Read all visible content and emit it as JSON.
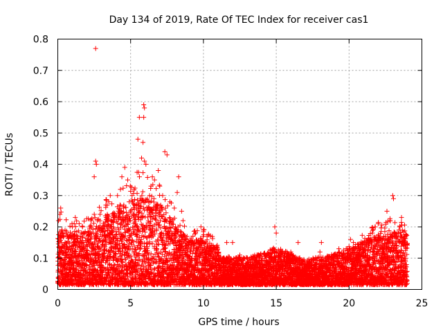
{
  "chart_data": {
    "type": "scatter",
    "title": "Day 134 of 2019, Rate Of TEC Index for receiver cas1",
    "xlabel": "GPS time / hours",
    "ylabel": "ROTI / TECUs",
    "xlim": [
      0,
      25
    ],
    "ylim": [
      0,
      0.8
    ],
    "x_ticks": [
      0,
      5,
      10,
      15,
      20,
      25
    ],
    "y_ticks": [
      0,
      0.1,
      0.2,
      0.3,
      0.4,
      0.5,
      0.6,
      0.7,
      0.8
    ],
    "x_tick_labels": [
      "0",
      "5",
      "10",
      "15",
      "20",
      "25"
    ],
    "y_tick_labels": [
      "0",
      "0.1",
      "0.2",
      "0.3",
      "0.4",
      "0.5",
      "0.6",
      "0.7",
      "0.8"
    ],
    "grid": true,
    "marker": "+",
    "color": "#ff0000",
    "series": [
      {
        "name": "ROTI",
        "points": [
          [
            2.6,
            0.77
          ],
          [
            5.9,
            0.59
          ],
          [
            5.95,
            0.58
          ],
          [
            5.6,
            0.55
          ],
          [
            5.9,
            0.55
          ],
          [
            5.5,
            0.48
          ],
          [
            5.85,
            0.47
          ],
          [
            5.75,
            0.42
          ],
          [
            5.95,
            0.41
          ],
          [
            6.05,
            0.4
          ],
          [
            7.35,
            0.44
          ],
          [
            7.5,
            0.43
          ],
          [
            6.9,
            0.38
          ],
          [
            2.6,
            0.41
          ],
          [
            2.65,
            0.4
          ],
          [
            2.5,
            0.36
          ],
          [
            4.6,
            0.39
          ],
          [
            4.4,
            0.36
          ],
          [
            4.8,
            0.35
          ],
          [
            8.3,
            0.36
          ],
          [
            8.2,
            0.31
          ],
          [
            7.0,
            0.33
          ],
          [
            6.4,
            0.33
          ],
          [
            6.3,
            0.3
          ],
          [
            3.5,
            0.28
          ],
          [
            3.4,
            0.24
          ],
          [
            0.2,
            0.26
          ],
          [
            0.15,
            0.24
          ],
          [
            0.05,
            0.22
          ],
          [
            23.0,
            0.3
          ],
          [
            23.05,
            0.29
          ],
          [
            22.6,
            0.25
          ],
          [
            22.0,
            0.21
          ],
          [
            21.8,
            0.2
          ],
          [
            23.6,
            0.23
          ],
          [
            21.6,
            0.18
          ],
          [
            22.8,
            0.22
          ],
          [
            23.5,
            0.2
          ],
          [
            10.0,
            0.19
          ],
          [
            14.9,
            0.2
          ],
          [
            15.0,
            0.18
          ],
          [
            16.5,
            0.15
          ],
          [
            18.1,
            0.15
          ],
          [
            20.1,
            0.16
          ],
          [
            20.3,
            0.15
          ],
          [
            11.6,
            0.15
          ],
          [
            12.0,
            0.15
          ],
          [
            13.0,
            0.1
          ],
          [
            16.0,
            0.12
          ],
          [
            19.3,
            0.13
          ],
          [
            19.8,
            0.13
          ],
          [
            18.0,
            0.12
          ],
          [
            12.5,
            0.11
          ],
          [
            14.0,
            0.1
          ],
          [
            17.0,
            0.08
          ],
          [
            8.5,
            0.25
          ],
          [
            8.6,
            0.22
          ],
          [
            1.2,
            0.23
          ],
          [
            1.0,
            0.2
          ],
          [
            1.7,
            0.2
          ],
          [
            0.5,
            0.15
          ],
          [
            2.9,
            0.24
          ],
          [
            3.3,
            0.27
          ],
          [
            3.8,
            0.23
          ],
          [
            4.1,
            0.3
          ],
          [
            4.3,
            0.32
          ],
          [
            4.9,
            0.28
          ],
          [
            5.1,
            0.3
          ],
          [
            5.3,
            0.27
          ],
          [
            6.6,
            0.29
          ],
          [
            7.2,
            0.3
          ],
          [
            7.7,
            0.28
          ],
          [
            8.0,
            0.26
          ],
          [
            9.0,
            0.15
          ],
          [
            9.5,
            0.13
          ],
          [
            10.5,
            0.12
          ],
          [
            11.0,
            0.09
          ],
          [
            12.2,
            0.08
          ],
          [
            13.5,
            0.07
          ],
          [
            15.5,
            0.09
          ],
          [
            16.8,
            0.06
          ],
          [
            17.5,
            0.05
          ],
          [
            18.5,
            0.07
          ],
          [
            19.0,
            0.08
          ],
          [
            20.5,
            0.1
          ],
          [
            21.0,
            0.12
          ],
          [
            21.3,
            0.15
          ],
          [
            22.3,
            0.16
          ],
          [
            23.3,
            0.17
          ],
          [
            23.8,
            0.15
          ]
        ],
        "envelope": [
          [
            0,
            0.12,
            0.16
          ],
          [
            1,
            0.1,
            0.15
          ],
          [
            2,
            0.1,
            0.16
          ],
          [
            3,
            0.1,
            0.2
          ],
          [
            4,
            0.12,
            0.22
          ],
          [
            5,
            0.14,
            0.25
          ],
          [
            6,
            0.16,
            0.26
          ],
          [
            7,
            0.14,
            0.24
          ],
          [
            8,
            0.1,
            0.18
          ],
          [
            9,
            0.07,
            0.12
          ],
          [
            10,
            0.09,
            0.13
          ],
          [
            11,
            0.06,
            0.1
          ],
          [
            11.2,
            0.04,
            0.07
          ],
          [
            12,
            0.04,
            0.07
          ],
          [
            13,
            0.04,
            0.07
          ],
          [
            14,
            0.04,
            0.08
          ],
          [
            15,
            0.05,
            0.1
          ],
          [
            16,
            0.04,
            0.08
          ],
          [
            17,
            0.03,
            0.06
          ],
          [
            18,
            0.03,
            0.07
          ],
          [
            19,
            0.04,
            0.08
          ],
          [
            20,
            0.05,
            0.1
          ],
          [
            21,
            0.07,
            0.12
          ],
          [
            22,
            0.09,
            0.14
          ],
          [
            23,
            0.1,
            0.15
          ],
          [
            24,
            0.08,
            0.14
          ]
        ]
      }
    ]
  }
}
